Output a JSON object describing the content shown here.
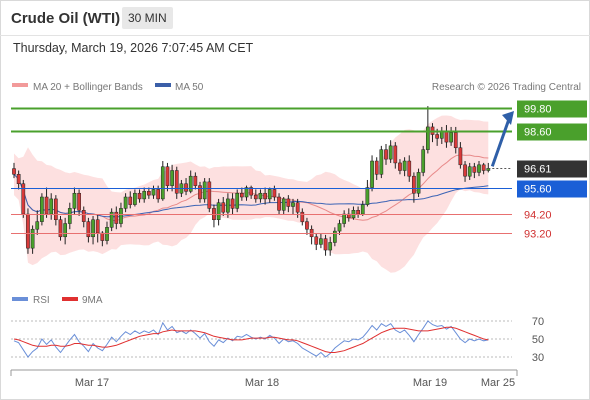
{
  "header": {
    "instrument": "Crude Oil (WTI)",
    "timeframe": "30 MIN",
    "datetime": "Thursday, March 19, 2026 7:07:45 AM CET"
  },
  "legend": {
    "ma20_label": "MA 20 + Bollinger Bands",
    "ma50_label": "MA 50",
    "rsi_label": "RSI",
    "rsi_ma_label": "9MA",
    "watermark": "Research © 2026 Trading Central"
  },
  "colors": {
    "resistance": "#4aa02c",
    "support_primary": "#1a5fd6",
    "support_secondary": "#e87070",
    "current": "#333333",
    "bollinger_fill": "#fde0e0",
    "ma20": "#e88a8a",
    "ma50": "#3b63b5",
    "candle_up": "#4aa02c",
    "candle_down": "#d93a3a",
    "arrow": "#2f5fa8",
    "rsi": "#6a8fd8",
    "rsi_ma": "#e03030"
  },
  "levels": [
    {
      "label": "99.80",
      "value": 99.8,
      "kind": "resistance"
    },
    {
      "label": "98.60",
      "value": 98.6,
      "kind": "resistance"
    },
    {
      "label": "96.61",
      "value": 96.61,
      "kind": "current"
    },
    {
      "label": "95.60",
      "value": 95.6,
      "kind": "support_primary"
    },
    {
      "label": "94.20",
      "value": 94.2,
      "kind": "support_secondary"
    },
    {
      "label": "93.20",
      "value": 93.2,
      "kind": "support_secondary"
    }
  ],
  "rsi_ticks": [
    "70",
    "50",
    "30"
  ],
  "x_labels": [
    "Mar 17",
    "Mar 18",
    "Mar 19",
    "Mar 25"
  ],
  "chart_data": {
    "type": "candlestick",
    "candles": [
      [
        96.6,
        96.3,
        96.9,
        96.1
      ],
      [
        96.3,
        95.8,
        96.5,
        95.5
      ],
      [
        95.8,
        94.2,
        96.0,
        94.0
      ],
      [
        94.2,
        92.4,
        94.5,
        92.1
      ],
      [
        92.4,
        93.4,
        93.6,
        92.1
      ],
      [
        93.4,
        93.8,
        94.4,
        93.1
      ],
      [
        93.8,
        95.1,
        95.3,
        93.6
      ],
      [
        95.1,
        94.2,
        95.6,
        94.0
      ],
      [
        94.2,
        95.0,
        95.3,
        93.9
      ],
      [
        95.0,
        93.9,
        95.2,
        93.6
      ],
      [
        93.9,
        93.0,
        94.1,
        92.8
      ],
      [
        93.0,
        93.7,
        94.0,
        92.6
      ],
      [
        93.7,
        94.5,
        94.8,
        93.4
      ],
      [
        94.5,
        95.3,
        95.6,
        94.2
      ],
      [
        95.3,
        94.4,
        95.5,
        94.1
      ],
      [
        94.4,
        93.8,
        94.6,
        93.5
      ],
      [
        93.8,
        93.0,
        94.0,
        92.7
      ],
      [
        93.0,
        93.9,
        94.1,
        92.6
      ],
      [
        93.9,
        93.2,
        94.2,
        92.7
      ],
      [
        93.2,
        92.8,
        93.3,
        92.5
      ],
      [
        92.8,
        93.5,
        93.8,
        92.6
      ],
      [
        93.5,
        94.3,
        94.5,
        93.3
      ],
      [
        94.3,
        93.7,
        94.6,
        93.4
      ],
      [
        93.7,
        94.5,
        94.8,
        93.5
      ],
      [
        94.5,
        95.1,
        95.3,
        94.3
      ],
      [
        95.1,
        94.7,
        95.4,
        94.5
      ],
      [
        94.7,
        95.3,
        95.5,
        94.6
      ],
      [
        95.3,
        95.0,
        95.5,
        94.8
      ],
      [
        95.0,
        95.4,
        95.6,
        94.8
      ],
      [
        95.4,
        95.2,
        95.6,
        95.0
      ],
      [
        95.2,
        95.5,
        95.7,
        95.0
      ],
      [
        95.5,
        95.0,
        95.7,
        94.8
      ],
      [
        95.0,
        96.7,
        97.0,
        94.9
      ],
      [
        96.7,
        95.7,
        96.9,
        95.4
      ],
      [
        95.7,
        96.5,
        96.8,
        95.4
      ],
      [
        96.5,
        95.3,
        96.7,
        95.0
      ],
      [
        95.3,
        95.8,
        96.0,
        95.1
      ],
      [
        95.8,
        95.4,
        96.1,
        95.2
      ],
      [
        95.4,
        96.2,
        96.5,
        95.3
      ],
      [
        96.2,
        95.7,
        96.4,
        95.5
      ],
      [
        95.7,
        95.0,
        95.9,
        94.8
      ],
      [
        95.0,
        95.9,
        96.1,
        94.8
      ],
      [
        95.9,
        94.5,
        96.1,
        94.3
      ],
      [
        94.5,
        93.9,
        94.7,
        93.5
      ],
      [
        93.9,
        94.8,
        95.0,
        93.6
      ],
      [
        94.8,
        94.3,
        95.1,
        94.1
      ],
      [
        94.3,
        95.0,
        95.3,
        94.0
      ],
      [
        95.0,
        94.5,
        95.3,
        94.2
      ],
      [
        94.5,
        95.3,
        95.5,
        94.3
      ],
      [
        95.3,
        95.1,
        95.6,
        94.9
      ],
      [
        95.1,
        95.6,
        95.7,
        94.9
      ],
      [
        95.6,
        95.2,
        95.7,
        95.0
      ],
      [
        95.2,
        95.0,
        95.5,
        94.8
      ],
      [
        95.0,
        95.3,
        95.5,
        94.8
      ],
      [
        95.3,
        95.0,
        95.6,
        94.7
      ],
      [
        95.0,
        95.5,
        95.6,
        94.8
      ],
      [
        95.5,
        95.1,
        95.7,
        94.9
      ],
      [
        95.1,
        94.4,
        95.3,
        94.2
      ],
      [
        94.4,
        95.0,
        95.1,
        94.2
      ],
      [
        95.0,
        94.6,
        95.2,
        94.3
      ],
      [
        94.6,
        94.8,
        95.0,
        94.2
      ],
      [
        94.8,
        94.3,
        95.0,
        94.0
      ],
      [
        94.3,
        93.8,
        94.5,
        93.6
      ],
      [
        93.8,
        93.4,
        94.0,
        93.1
      ],
      [
        93.4,
        93.0,
        93.6,
        92.6
      ],
      [
        93.0,
        92.6,
        93.2,
        92.3
      ],
      [
        92.6,
        92.9,
        93.2,
        92.4
      ],
      [
        92.9,
        92.3,
        93.1,
        92.0
      ],
      [
        92.3,
        92.7,
        93.0,
        92.0
      ],
      [
        92.7,
        93.3,
        93.5,
        92.5
      ],
      [
        93.3,
        93.7,
        93.9,
        93.1
      ],
      [
        93.7,
        94.2,
        94.4,
        93.5
      ],
      [
        94.2,
        94.0,
        94.5,
        93.8
      ],
      [
        94.0,
        94.4,
        94.6,
        93.9
      ],
      [
        94.4,
        94.2,
        94.6,
        94.0
      ],
      [
        94.2,
        94.7,
        94.9,
        94.1
      ],
      [
        94.7,
        95.6,
        96.0,
        94.6
      ],
      [
        95.6,
        97.0,
        97.3,
        95.4
      ],
      [
        97.0,
        96.3,
        97.2,
        96.0
      ],
      [
        96.3,
        97.6,
        97.8,
        96.1
      ],
      [
        97.6,
        97.1,
        97.9,
        96.8
      ],
      [
        97.1,
        97.8,
        98.1,
        96.9
      ],
      [
        97.8,
        96.9,
        98.0,
        96.6
      ],
      [
        96.9,
        96.5,
        97.1,
        96.3
      ],
      [
        96.5,
        97.0,
        97.2,
        96.2
      ],
      [
        97.0,
        96.2,
        97.3,
        95.9
      ],
      [
        96.2,
        95.3,
        96.4,
        94.8
      ],
      [
        95.3,
        96.4,
        96.6,
        95.1
      ],
      [
        96.4,
        97.6,
        97.8,
        96.2
      ],
      [
        97.6,
        98.8,
        99.9,
        97.4
      ],
      [
        98.8,
        98.4,
        99.0,
        98.0
      ],
      [
        98.4,
        98.2,
        98.7,
        97.8
      ],
      [
        98.2,
        98.6,
        98.8,
        97.9
      ],
      [
        98.6,
        98.0,
        98.9,
        97.7
      ],
      [
        98.0,
        98.5,
        98.8,
        97.8
      ],
      [
        98.5,
        97.7,
        98.8,
        97.4
      ],
      [
        97.7,
        96.8,
        98.0,
        96.6
      ],
      [
        96.8,
        96.2,
        97.0,
        95.9
      ],
      [
        96.2,
        96.7,
        96.9,
        96.0
      ],
      [
        96.7,
        96.4,
        96.9,
        96.1
      ],
      [
        96.4,
        96.8,
        97.0,
        96.2
      ],
      [
        96.8,
        96.5,
        96.9,
        96.3
      ],
      [
        96.5,
        96.61,
        96.9,
        96.4
      ]
    ],
    "rsi": [
      48,
      46,
      38,
      30,
      36,
      40,
      50,
      44,
      49,
      41,
      35,
      42,
      49,
      55,
      47,
      42,
      36,
      45,
      40,
      37,
      44,
      52,
      47,
      53,
      58,
      55,
      59,
      56,
      59,
      57,
      60,
      55,
      68,
      60,
      64,
      57,
      59,
      56,
      60,
      56,
      51,
      56,
      47,
      42,
      49,
      46,
      51,
      48,
      53,
      52,
      55,
      52,
      50,
      52,
      50,
      54,
      51,
      45,
      50,
      47,
      48,
      45,
      40,
      37,
      34,
      31,
      35,
      30,
      34,
      40,
      44,
      48,
      47,
      50,
      49,
      52,
      58,
      65,
      60,
      67,
      64,
      67,
      60,
      57,
      60,
      54,
      47,
      55,
      62,
      70,
      66,
      64,
      65,
      61,
      64,
      57,
      50,
      46,
      50,
      48,
      50,
      48,
      49
    ],
    "rsi_ma": [
      50,
      49,
      47,
      45,
      43,
      42,
      42,
      42,
      43,
      43,
      42,
      42,
      43,
      45,
      45,
      44,
      43,
      43,
      42,
      41,
      41,
      42,
      43,
      45,
      47,
      49,
      51,
      53,
      54,
      55,
      56,
      56,
      58,
      59,
      60,
      59,
      59,
      59,
      59,
      59,
      58,
      57,
      55,
      53,
      52,
      51,
      50,
      49,
      49,
      49,
      50,
      51,
      51,
      51,
      51,
      52,
      52,
      51,
      50,
      49,
      49,
      48,
      46,
      44,
      42,
      40,
      38,
      36,
      35,
      35,
      36,
      37,
      39,
      41,
      43,
      45,
      48,
      51,
      54,
      57,
      59,
      61,
      62,
      62,
      62,
      61,
      60,
      59,
      59,
      59,
      60,
      61,
      62,
      63,
      63,
      62,
      60,
      58,
      56,
      54,
      52,
      50,
      49
    ],
    "ylim": [
      91.5,
      100.1
    ],
    "rsi_ylim": [
      20,
      80
    ]
  }
}
